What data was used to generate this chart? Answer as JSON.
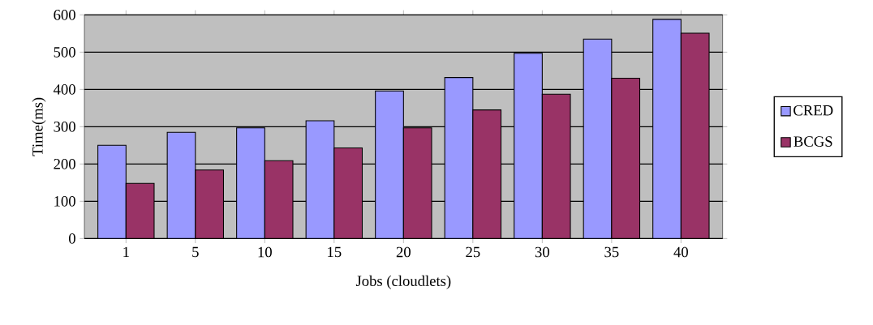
{
  "chart_data": {
    "type": "bar",
    "xlabel": "Jobs (cloudlets)",
    "ylabel": "Time(ms)",
    "categories": [
      "1",
      "5",
      "10",
      "15",
      "20",
      "25",
      "30",
      "35",
      "40"
    ],
    "series": [
      {
        "name": "CRED",
        "color": "#9999ff",
        "values": [
          250,
          285,
          297,
          316,
          396,
          432,
          497,
          535,
          588
        ]
      },
      {
        "name": "BCGS",
        "color": "#993366",
        "values": [
          148,
          184,
          209,
          243,
          297,
          345,
          387,
          430,
          551
        ]
      }
    ],
    "ylim": [
      0,
      600
    ],
    "yticks": [
      0,
      100,
      200,
      300,
      400,
      500,
      600
    ],
    "grid": "y",
    "legend": "right"
  }
}
